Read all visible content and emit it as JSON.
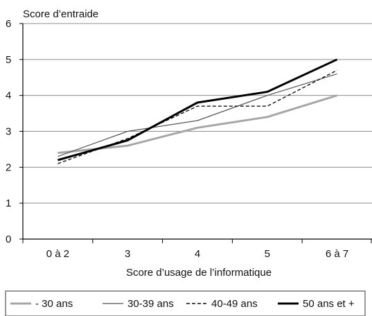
{
  "chart_data": {
    "type": "line",
    "ylabel": "Score d’entraide",
    "xlabel": "Score d’usage de l’informatique",
    "categories": [
      "0 à 2",
      "3",
      "4",
      "5",
      "6 à 7"
    ],
    "ylim": [
      0,
      6
    ],
    "yticks": [
      "0",
      "1",
      "2",
      "3",
      "4",
      "5",
      "6"
    ],
    "grid": "horizontal",
    "legend_position": "bottom",
    "series": [
      {
        "name": "- 30 ans",
        "values": [
          2.4,
          2.6,
          3.1,
          3.4,
          4.0
        ],
        "color": "#a6a6a6",
        "style": "thick-solid"
      },
      {
        "name": "30-39 ans",
        "values": [
          2.3,
          3.0,
          3.3,
          4.0,
          4.6
        ],
        "color": "#555555",
        "style": "thin-solid"
      },
      {
        "name": "40-49 ans",
        "values": [
          2.1,
          2.8,
          3.7,
          3.7,
          4.7
        ],
        "color": "#111111",
        "style": "dashed"
      },
      {
        "name": "50 ans et +",
        "values": [
          2.2,
          2.75,
          3.8,
          4.1,
          5.0
        ],
        "color": "#000000",
        "style": "thick-solid"
      }
    ]
  }
}
